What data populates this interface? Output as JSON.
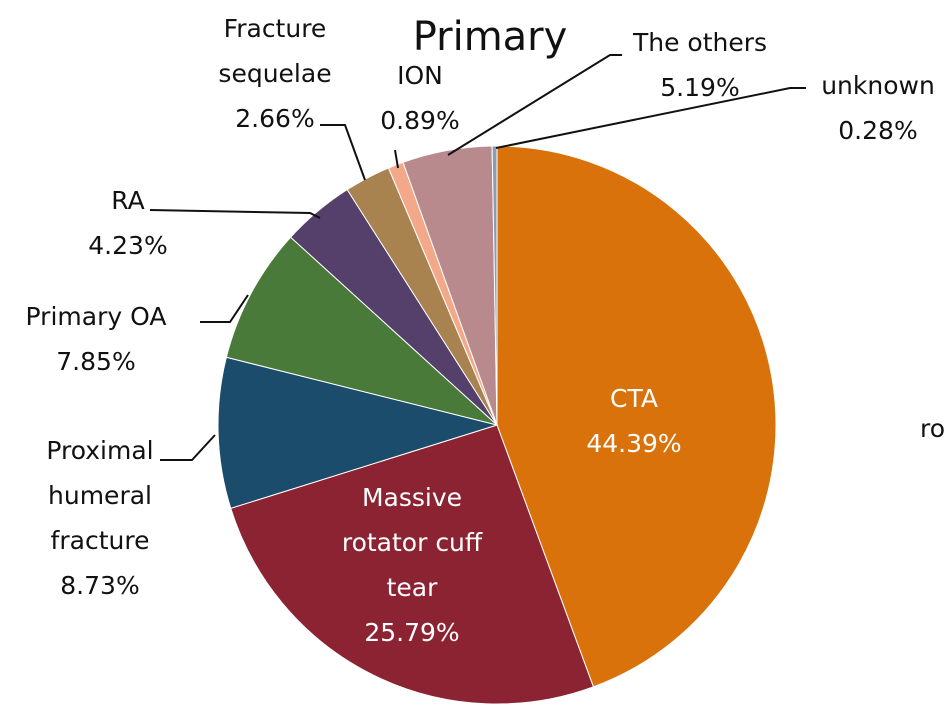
{
  "chart_data": {
    "type": "pie",
    "title": "Primary",
    "categories": [
      "CTA",
      "Massive rotator cuff tear",
      "Proximal humeral fracture",
      "Primary OA",
      "RA",
      "Fracture sequelae",
      "ION",
      "The others",
      "unknown"
    ],
    "values": [
      44.39,
      25.79,
      8.73,
      7.85,
      4.23,
      2.66,
      0.89,
      5.19,
      0.28
    ],
    "value_labels": [
      "44.39%",
      "25.79%",
      "8.73%",
      "7.85%",
      "4.23%",
      "2.66%",
      "0.89%",
      "5.19%",
      "0.28%"
    ],
    "colors": [
      "#d9720a",
      "#8b2332",
      "#1b4c6b",
      "#4a7a3a",
      "#553f6b",
      "#a9834f",
      "#f4a88a",
      "#b98a8d",
      "#8c9db0"
    ],
    "annotations": [
      "ro"
    ]
  }
}
